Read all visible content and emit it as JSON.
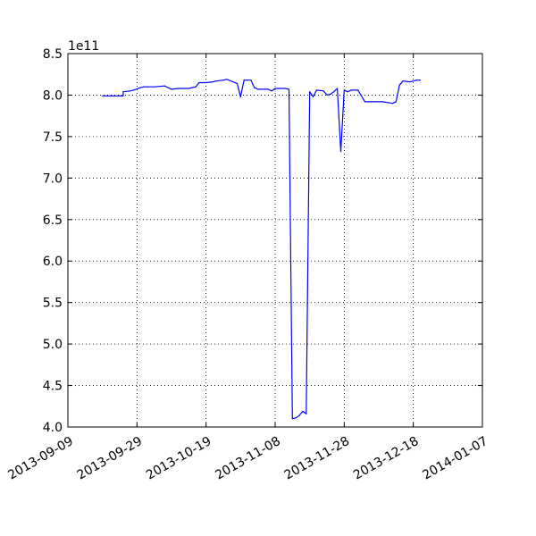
{
  "chart_data": {
    "type": "line",
    "title": "",
    "xlabel": "",
    "ylabel": "",
    "y_offset_label": "1e11",
    "grid": true,
    "grid_style": "dotted",
    "line_color": "#0000ff",
    "xlim": [
      "2013-09-09",
      "2014-01-07"
    ],
    "ylim": [
      4.0,
      8.5
    ],
    "x_ticks": [
      {
        "date": "2013-09-09",
        "label": "2013-09-09"
      },
      {
        "date": "2013-09-29",
        "label": "2013-09-29"
      },
      {
        "date": "2013-10-19",
        "label": "2013-10-19"
      },
      {
        "date": "2013-11-08",
        "label": "2013-11-08"
      },
      {
        "date": "2013-11-28",
        "label": "2013-11-28"
      },
      {
        "date": "2013-12-18",
        "label": "2013-12-18"
      },
      {
        "date": "2014-01-07",
        "label": "2014-01-07"
      }
    ],
    "y_ticks": [
      {
        "value": 4.0,
        "label": "4.0"
      },
      {
        "value": 4.5,
        "label": "4.5"
      },
      {
        "value": 5.0,
        "label": "5.0"
      },
      {
        "value": 5.5,
        "label": "5.5"
      },
      {
        "value": 6.0,
        "label": "6.0"
      },
      {
        "value": 6.5,
        "label": "6.5"
      },
      {
        "value": 7.0,
        "label": "7.0"
      },
      {
        "value": 7.5,
        "label": "7.5"
      },
      {
        "value": 8.0,
        "label": "8.0"
      },
      {
        "value": 8.5,
        "label": "8.5"
      }
    ],
    "series": [
      {
        "x": [
          "2013-09-19",
          "2013-09-25",
          "2013-09-25",
          "2013-09-27",
          "2013-09-28",
          "2013-09-30",
          "2013-10-01",
          "2013-10-02",
          "2013-10-04",
          "2013-10-07",
          "2013-10-08",
          "2013-10-09",
          "2013-10-11",
          "2013-10-14",
          "2013-10-16",
          "2013-10-17",
          "2013-10-18",
          "2013-10-19",
          "2013-10-21",
          "2013-10-22",
          "2013-10-24",
          "2013-10-25",
          "2013-10-28",
          "2013-10-29",
          "2013-10-30",
          "2013-10-31",
          "2013-11-01",
          "2013-11-02",
          "2013-11-03",
          "2013-11-05",
          "2013-11-06",
          "2013-11-07",
          "2013-11-08",
          "2013-11-09",
          "2013-11-11",
          "2013-11-12",
          "2013-11-13",
          "2013-11-14",
          "2013-11-15",
          "2013-11-16",
          "2013-11-17",
          "2013-11-18",
          "2013-11-19",
          "2013-11-20",
          "2013-11-22",
          "2013-11-23",
          "2013-11-24",
          "2013-11-25",
          "2013-11-26",
          "2013-11-27",
          "2013-11-28",
          "2013-11-29",
          "2013-11-30",
          "2013-12-02",
          "2013-12-04",
          "2013-12-06",
          "2013-12-09",
          "2013-12-12",
          "2013-12-13",
          "2013-12-14",
          "2013-12-15",
          "2013-12-17",
          "2013-12-19",
          "2013-12-20"
        ],
        "values": [
          7.99,
          7.99,
          8.04,
          8.05,
          8.06,
          8.09,
          8.1,
          8.1,
          8.1,
          8.11,
          8.09,
          8.07,
          8.08,
          8.08,
          8.1,
          8.15,
          8.15,
          8.15,
          8.16,
          8.17,
          8.18,
          8.19,
          8.14,
          7.98,
          8.18,
          8.18,
          8.18,
          8.09,
          8.07,
          8.07,
          8.07,
          8.05,
          8.08,
          8.08,
          8.08,
          8.07,
          4.1,
          4.11,
          4.14,
          4.19,
          4.16,
          8.04,
          7.98,
          8.06,
          8.05,
          8.0,
          8.01,
          8.04,
          8.08,
          7.32,
          8.06,
          8.04,
          8.06,
          8.06,
          7.92,
          7.92,
          7.92,
          7.9,
          7.92,
          8.12,
          8.17,
          8.16,
          8.18,
          8.18
        ],
        "note_unused": ""
      }
    ]
  }
}
